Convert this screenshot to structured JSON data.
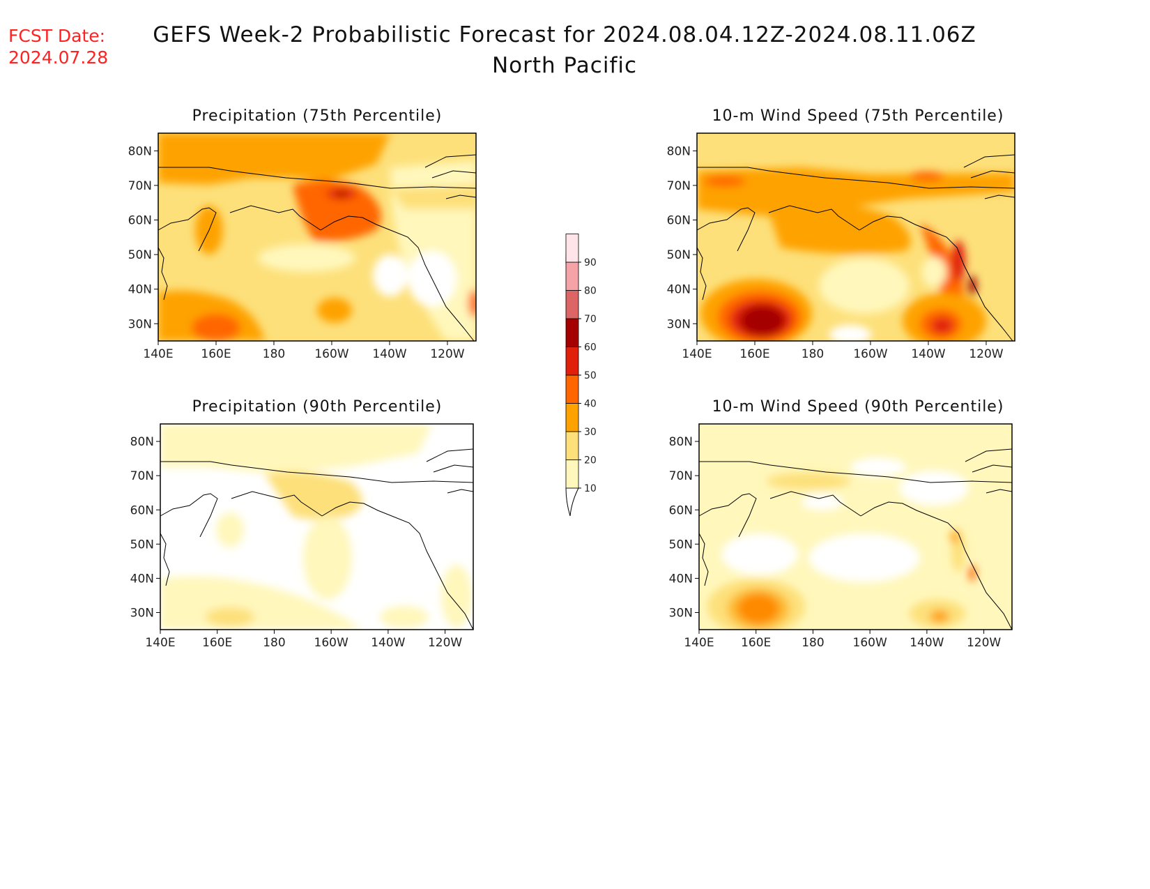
{
  "header": {
    "fcst_label": "FCST Date:",
    "fcst_date": "2024.07.28",
    "title": "GEFS Week-2 Probabilistic Forecast for 2024.08.04.12Z-2024.08.11.06Z",
    "subtitle": "North Pacific"
  },
  "axes": {
    "lat_labels": [
      "80N",
      "70N",
      "60N",
      "50N",
      "40N",
      "30N"
    ],
    "lon_labels": [
      "140E",
      "160E",
      "180",
      "160W",
      "140W",
      "120W"
    ]
  },
  "panels": [
    {
      "id": "precip75",
      "title": "Precipitation (75th Percentile)"
    },
    {
      "id": "wind75",
      "title": "10-m Wind Speed (75th Percentile)"
    },
    {
      "id": "precip90",
      "title": "Precipitation (90th Percentile)"
    },
    {
      "id": "wind90",
      "title": "10-m Wind Speed (90th Percentile)"
    }
  ],
  "colorbar": {
    "labels": [
      "10",
      "20",
      "30",
      "40",
      "50",
      "60",
      "70",
      "80",
      "90"
    ],
    "colors": [
      "#fff7bb",
      "#fde07a",
      "#fea200",
      "#ff6600",
      "#e0200a",
      "#a50000",
      "#dc6565",
      "#f6a3a8",
      "#ffe4ea"
    ]
  }
}
